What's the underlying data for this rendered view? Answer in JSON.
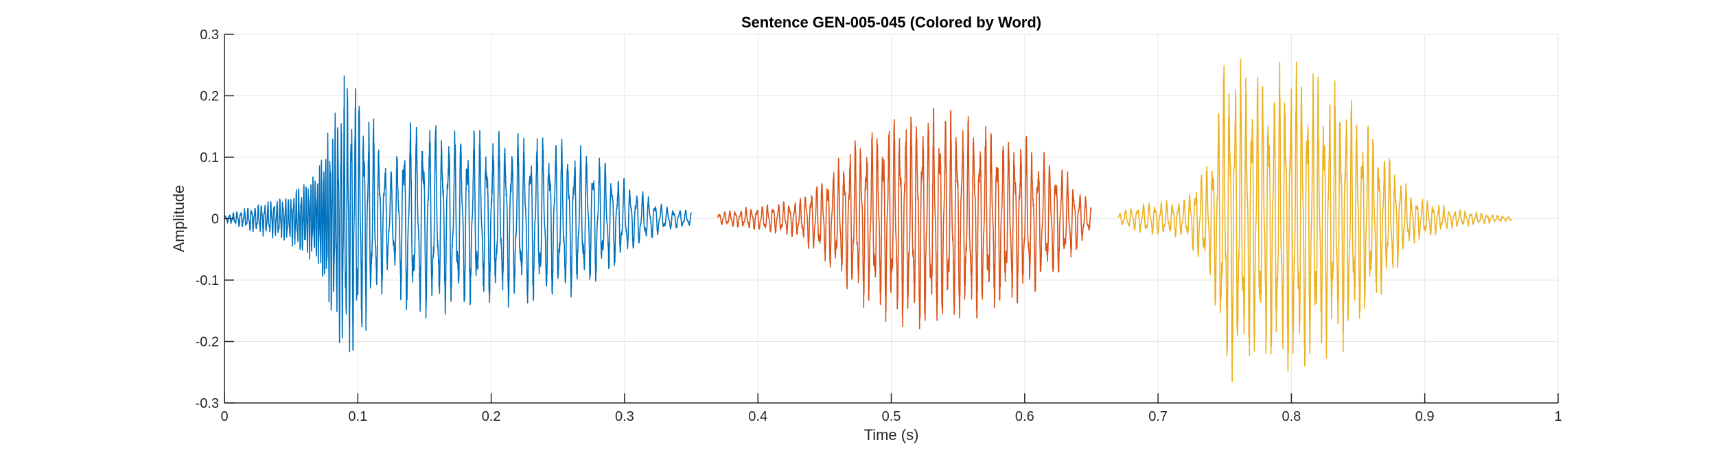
{
  "chart_data": {
    "type": "line",
    "title": "Sentence GEN-005-045 (Colored by Word)",
    "xlabel": "Time (s)",
    "ylabel": "Amplitude",
    "xlim": [
      0,
      1
    ],
    "ylim": [
      -0.3,
      0.3
    ],
    "xticks": [
      "0",
      "0.1",
      "0.2",
      "0.3",
      "0.4",
      "0.5",
      "0.6",
      "0.7",
      "0.8",
      "0.9",
      "1"
    ],
    "yticks": [
      "0.3",
      "0.2",
      "0.1",
      "0",
      "-0.1",
      "-0.2",
      "-0.3"
    ],
    "grid": true,
    "series": [
      {
        "color": "#0072BD",
        "x_range": [
          0.0,
          0.35
        ],
        "envelope": [
          [
            0.0,
            0.005
          ],
          [
            0.02,
            0.02
          ],
          [
            0.05,
            0.04
          ],
          [
            0.07,
            0.08
          ],
          [
            0.085,
            0.19
          ],
          [
            0.09,
            0.22
          ],
          [
            0.1,
            0.21
          ],
          [
            0.11,
            0.16
          ],
          [
            0.125,
            0.08
          ],
          [
            0.135,
            0.15
          ],
          [
            0.15,
            0.155
          ],
          [
            0.2,
            0.135
          ],
          [
            0.25,
            0.13
          ],
          [
            0.28,
            0.1
          ],
          [
            0.3,
            0.06
          ],
          [
            0.33,
            0.02
          ],
          [
            0.35,
            0.012
          ]
        ],
        "periods": [
          [
            0.0,
            0.003
          ],
          [
            0.075,
            0.0015
          ],
          [
            0.125,
            0.0048
          ],
          [
            0.35,
            0.0046
          ]
        ]
      },
      {
        "color": "#D95319",
        "x_range": [
          0.37,
          0.65
        ],
        "envelope": [
          [
            0.37,
            0.01
          ],
          [
            0.4,
            0.02
          ],
          [
            0.43,
            0.03
          ],
          [
            0.45,
            0.07
          ],
          [
            0.47,
            0.12
          ],
          [
            0.5,
            0.165
          ],
          [
            0.53,
            0.18
          ],
          [
            0.55,
            0.165
          ],
          [
            0.6,
            0.13
          ],
          [
            0.63,
            0.08
          ],
          [
            0.65,
            0.02
          ]
        ],
        "periods": [
          [
            0.37,
            0.004
          ],
          [
            0.5,
            0.0042
          ],
          [
            0.65,
            0.0045
          ]
        ]
      },
      {
        "color": "#EDB120",
        "x_range": [
          0.67,
          0.965
        ],
        "envelope": [
          [
            0.67,
            0.01
          ],
          [
            0.69,
            0.025
          ],
          [
            0.72,
            0.03
          ],
          [
            0.74,
            0.1
          ],
          [
            0.75,
            0.26
          ],
          [
            0.78,
            0.22
          ],
          [
            0.8,
            0.25
          ],
          [
            0.82,
            0.22
          ],
          [
            0.84,
            0.2
          ],
          [
            0.87,
            0.11
          ],
          [
            0.89,
            0.04
          ],
          [
            0.92,
            0.015
          ],
          [
            0.965,
            0.003
          ]
        ],
        "periods": [
          [
            0.67,
            0.0045
          ],
          [
            0.75,
            0.0042
          ],
          [
            0.965,
            0.004
          ]
        ]
      }
    ]
  }
}
